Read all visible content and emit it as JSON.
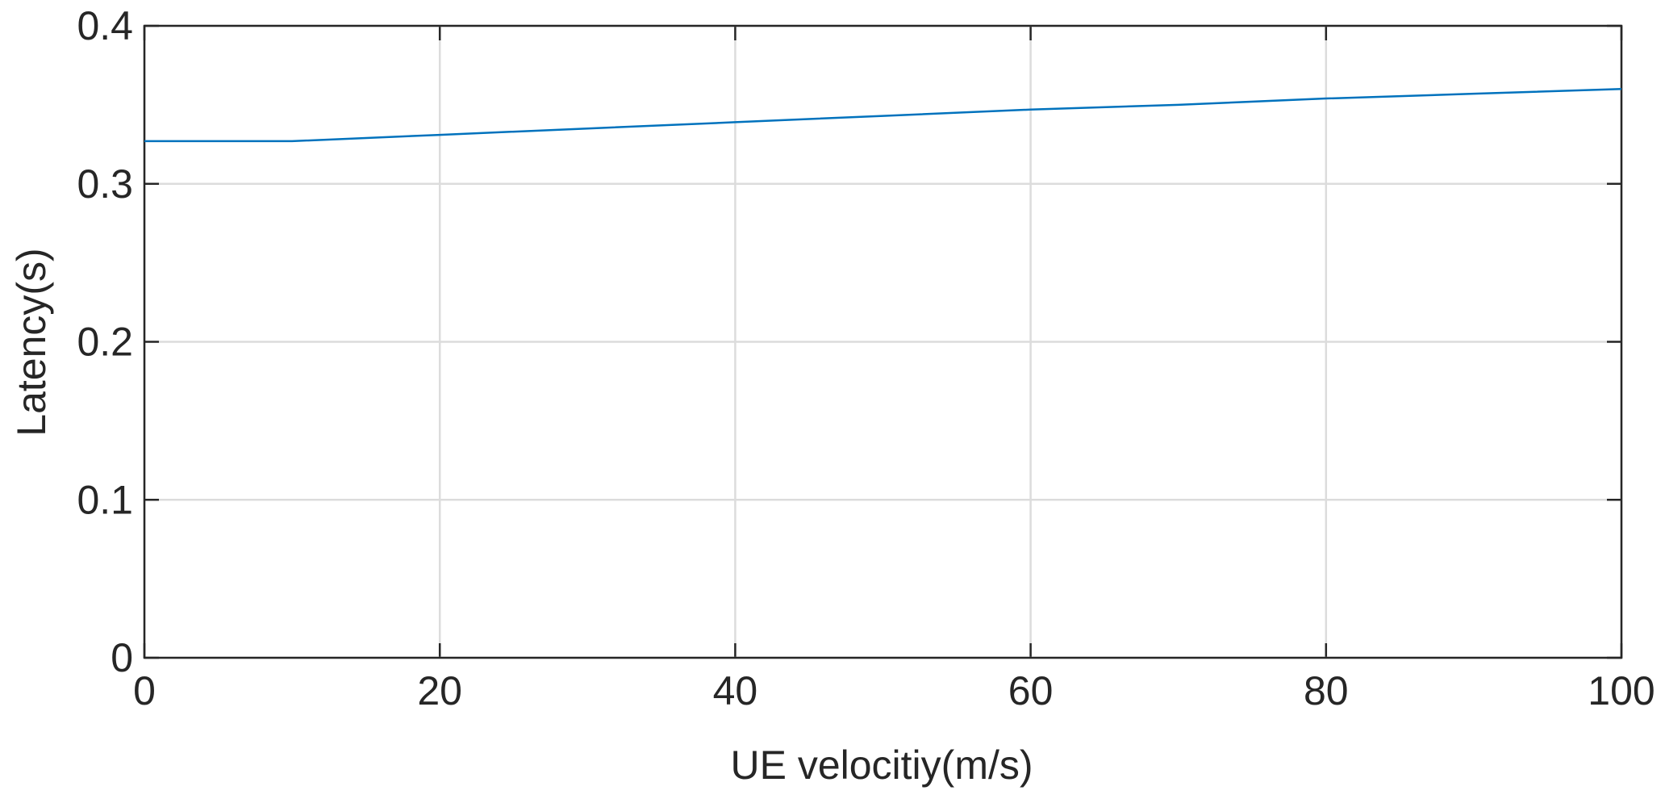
{
  "chart_data": {
    "type": "line",
    "x_label": "UE velocitiy(m/s)",
    "y_label": "Latency(s)",
    "x": [
      0,
      10,
      20,
      30,
      40,
      50,
      60,
      70,
      80,
      90,
      100
    ],
    "series": [
      {
        "name": "Latency",
        "color": "#0072bd",
        "values": [
          0.327,
          0.327,
          0.331,
          0.335,
          0.339,
          0.343,
          0.347,
          0.35,
          0.354,
          0.357,
          0.36
        ]
      }
    ],
    "xlim": [
      0,
      100
    ],
    "xticks": [
      0,
      20,
      40,
      60,
      80,
      100
    ],
    "ylim": [
      0,
      0.4
    ],
    "yticks": [
      0,
      0.1,
      0.2,
      0.3,
      0.4
    ],
    "grid": true
  }
}
